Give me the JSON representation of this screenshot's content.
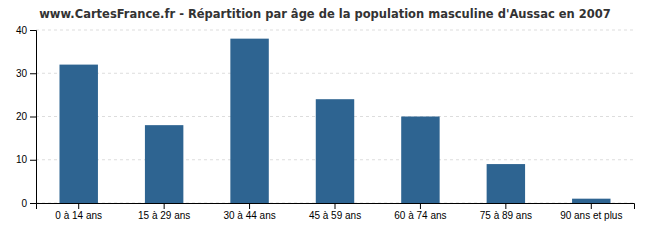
{
  "chart_data": {
    "type": "bar",
    "title": "www.CartesFrance.fr - Répartition par âge de la population masculine d'Aussac en 2007",
    "categories": [
      "0 à 14 ans",
      "15 à 29 ans",
      "30 à 44 ans",
      "45 à 59 ans",
      "60 à 74 ans",
      "75 à 89 ans",
      "90 ans et plus"
    ],
    "values": [
      32,
      18,
      38,
      24,
      20,
      9,
      1
    ],
    "color": "#2e6491",
    "ylim": [
      0,
      40
    ],
    "yticks": [
      0,
      10,
      20,
      30,
      40
    ],
    "grid": true
  }
}
